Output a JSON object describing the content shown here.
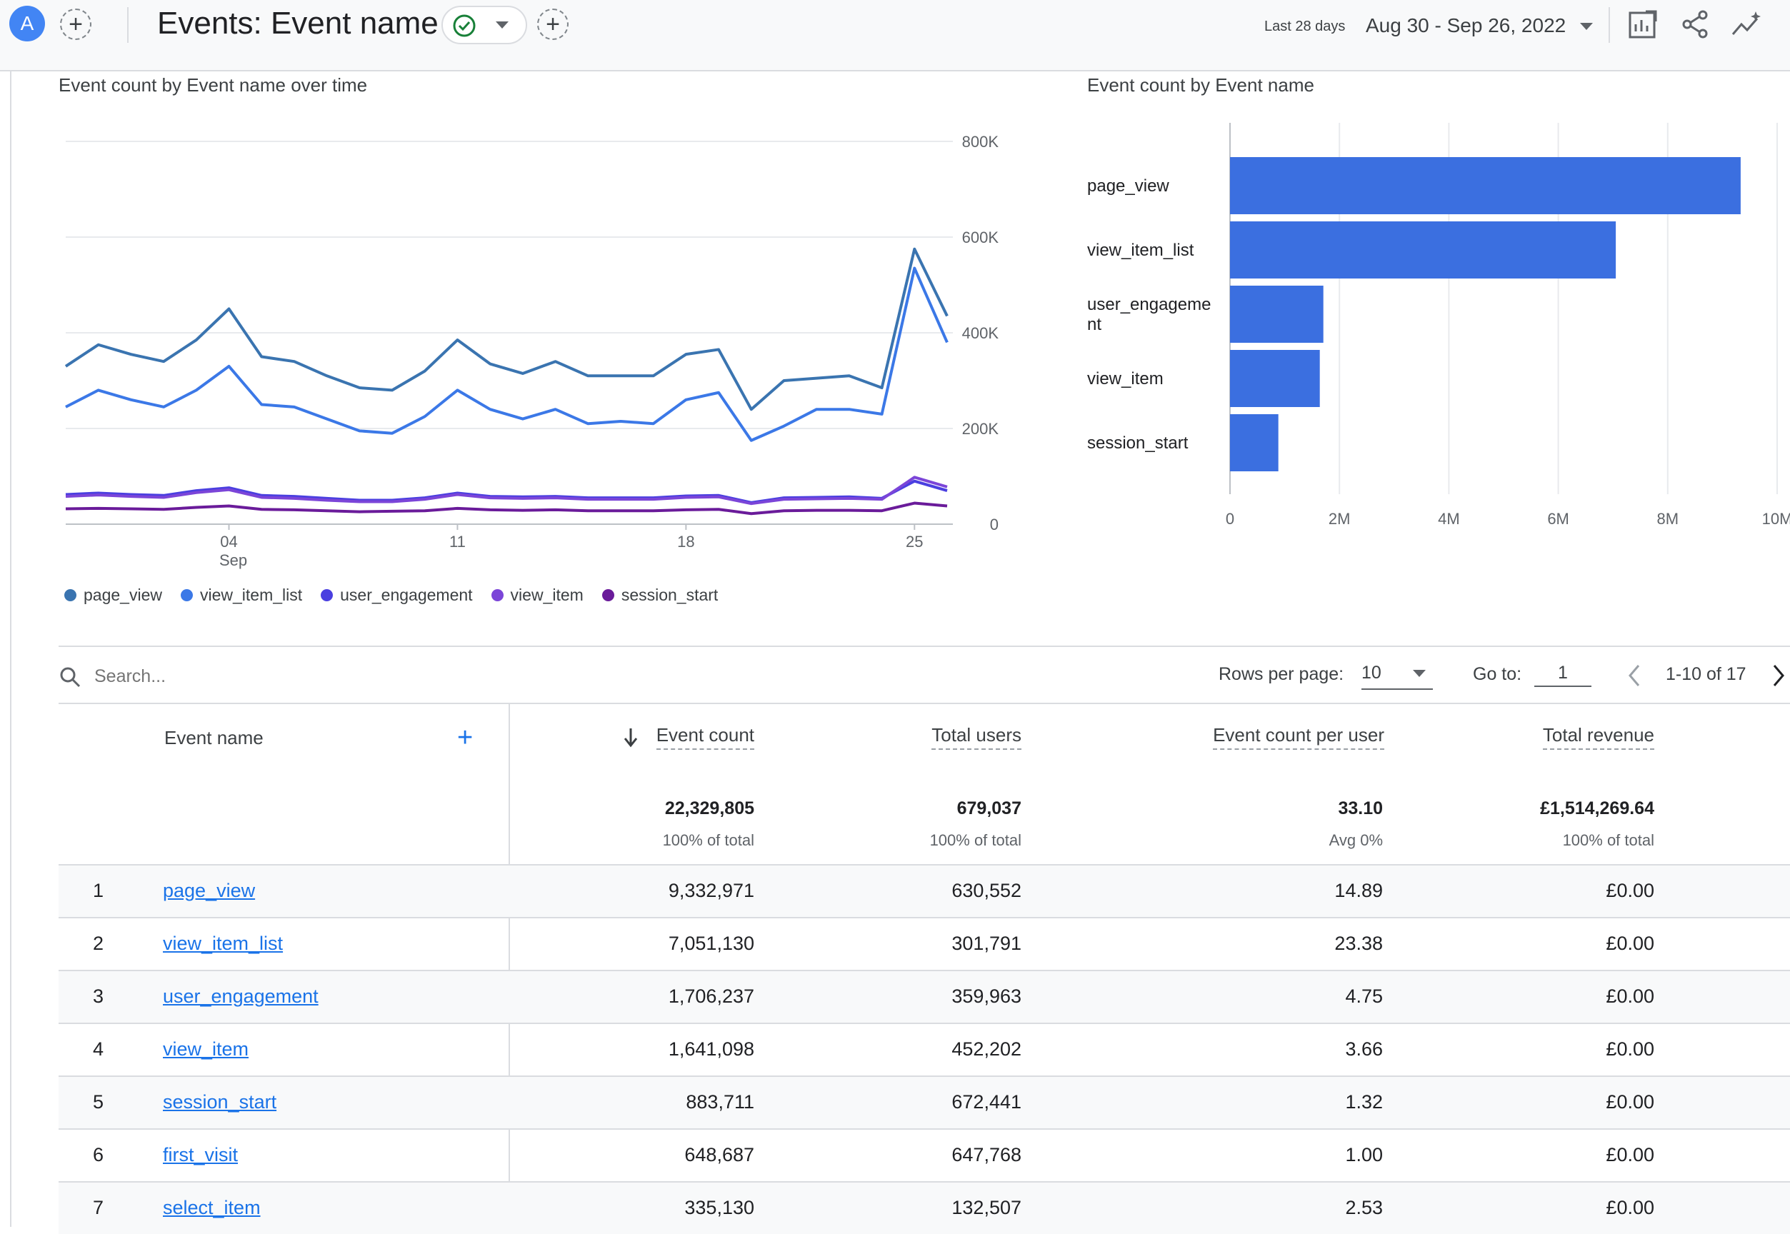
{
  "header": {
    "avatar_letter": "A",
    "add_symbol": "+",
    "title": "Events: Event name",
    "range_label": "Last 28 days",
    "date_range": "Aug 30 - Sep 26, 2022"
  },
  "line_chart": {
    "title": "Event count by Event name over time",
    "y_ticks": [
      "800K",
      "600K",
      "400K",
      "200K",
      "0"
    ],
    "x_ticks": [
      {
        "label": "04",
        "sub": "Sep"
      },
      {
        "label": "11",
        "sub": ""
      },
      {
        "label": "18",
        "sub": ""
      },
      {
        "label": "25",
        "sub": ""
      }
    ],
    "legend": [
      {
        "name": "page_view",
        "color": "#3a74b0"
      },
      {
        "name": "view_item_list",
        "color": "#3b78e7"
      },
      {
        "name": "user_engagement",
        "color": "#4a3fe0"
      },
      {
        "name": "view_item",
        "color": "#7b45d8"
      },
      {
        "name": "session_start",
        "color": "#6a1b9a"
      }
    ]
  },
  "bar_chart": {
    "title": "Event count by Event name",
    "categories": [
      "page_view",
      "view_item_list",
      "user_engageme\nnt",
      "view_item",
      "session_start"
    ],
    "x_ticks": [
      "0",
      "2M",
      "4M",
      "6M",
      "8M",
      "10M"
    ],
    "color": "#3b6fe0"
  },
  "chart_data": [
    {
      "type": "line",
      "title": "Event count by Event name over time",
      "x": [
        "Aug 30",
        "Aug 31",
        "Sep 1",
        "Sep 2",
        "Sep 3",
        "Sep 4",
        "Sep 5",
        "Sep 6",
        "Sep 7",
        "Sep 8",
        "Sep 9",
        "Sep 10",
        "Sep 11",
        "Sep 12",
        "Sep 13",
        "Sep 14",
        "Sep 15",
        "Sep 16",
        "Sep 17",
        "Sep 18",
        "Sep 19",
        "Sep 20",
        "Sep 21",
        "Sep 22",
        "Sep 23",
        "Sep 24",
        "Sep 25",
        "Sep 26"
      ],
      "ylim": [
        0,
        800000
      ],
      "series": [
        {
          "name": "page_view",
          "values": [
            330000,
            375000,
            355000,
            340000,
            385000,
            450000,
            350000,
            340000,
            310000,
            285000,
            280000,
            320000,
            385000,
            335000,
            315000,
            340000,
            310000,
            310000,
            310000,
            355000,
            365000,
            240000,
            300000,
            305000,
            310000,
            285000,
            575000,
            435000
          ]
        },
        {
          "name": "view_item_list",
          "values": [
            245000,
            280000,
            260000,
            245000,
            280000,
            330000,
            250000,
            245000,
            220000,
            195000,
            190000,
            225000,
            280000,
            240000,
            220000,
            240000,
            210000,
            215000,
            210000,
            260000,
            275000,
            175000,
            205000,
            240000,
            240000,
            230000,
            535000,
            380000
          ]
        },
        {
          "name": "user_engagement",
          "values": [
            62000,
            65000,
            62000,
            60000,
            70000,
            76000,
            60000,
            58000,
            54000,
            50000,
            50000,
            55000,
            65000,
            58000,
            57000,
            58000,
            55000,
            55000,
            55000,
            59000,
            60000,
            45000,
            55000,
            56000,
            57000,
            54000,
            90000,
            70000
          ]
        },
        {
          "name": "view_item",
          "values": [
            58000,
            61000,
            58000,
            56000,
            66000,
            72000,
            56000,
            54000,
            50000,
            47000,
            47000,
            52000,
            62000,
            55000,
            54000,
            55000,
            52000,
            52000,
            52000,
            56000,
            57000,
            43000,
            52000,
            53000,
            54000,
            52000,
            98000,
            78000
          ]
        },
        {
          "name": "session_start",
          "values": [
            32000,
            33000,
            32000,
            31000,
            35000,
            38000,
            31000,
            30000,
            28000,
            26000,
            27000,
            28000,
            33000,
            30000,
            29000,
            30000,
            28000,
            28000,
            28000,
            30000,
            31000,
            22000,
            28000,
            29000,
            29000,
            28000,
            44000,
            38000
          ]
        }
      ]
    },
    {
      "type": "bar",
      "title": "Event count by Event name",
      "categories": [
        "page_view",
        "view_item_list",
        "user_engagement",
        "view_item",
        "session_start"
      ],
      "values": [
        9332971,
        7051130,
        1706237,
        1641098,
        883711
      ],
      "xlim": [
        0,
        10000000
      ]
    }
  ],
  "table": {
    "search_placeholder": "Search...",
    "rows_per_page_label": "Rows per page:",
    "rows_per_page_value": "10",
    "goto_label": "Go to:",
    "goto_value": "1",
    "page_info": "1-10 of 17",
    "columns": {
      "event_name": "Event name",
      "event_count": "Event count",
      "total_users": "Total users",
      "per_user": "Event count per user",
      "revenue": "Total revenue"
    },
    "add_column_symbol": "+",
    "totals": {
      "event_count": "22,329,805",
      "event_count_sub": "100% of total",
      "total_users": "679,037",
      "total_users_sub": "100% of total",
      "per_user": "33.10",
      "per_user_sub": "Avg 0%",
      "revenue": "£1,514,269.64",
      "revenue_sub": "100% of total"
    },
    "rows": [
      {
        "idx": "1",
        "name": "page_view",
        "count": "9,332,971",
        "users": "630,552",
        "per_user": "14.89",
        "revenue": "£0.00"
      },
      {
        "idx": "2",
        "name": "view_item_list",
        "count": "7,051,130",
        "users": "301,791",
        "per_user": "23.38",
        "revenue": "£0.00"
      },
      {
        "idx": "3",
        "name": "user_engagement",
        "count": "1,706,237",
        "users": "359,963",
        "per_user": "4.75",
        "revenue": "£0.00"
      },
      {
        "idx": "4",
        "name": "view_item",
        "count": "1,641,098",
        "users": "452,202",
        "per_user": "3.66",
        "revenue": "£0.00"
      },
      {
        "idx": "5",
        "name": "session_start",
        "count": "883,711",
        "users": "672,441",
        "per_user": "1.32",
        "revenue": "£0.00"
      },
      {
        "idx": "6",
        "name": "first_visit",
        "count": "648,687",
        "users": "647,768",
        "per_user": "1.00",
        "revenue": "£0.00"
      },
      {
        "idx": "7",
        "name": "select_item",
        "count": "335,130",
        "users": "132,507",
        "per_user": "2.53",
        "revenue": "£0.00"
      }
    ]
  }
}
